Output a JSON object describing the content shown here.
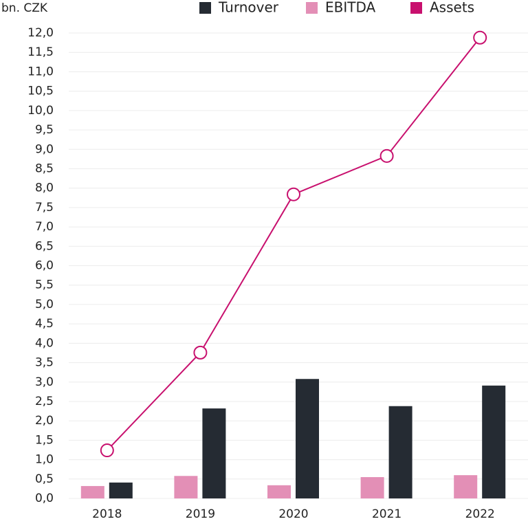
{
  "chart_data": {
    "type": "bar",
    "y_label": "bn. CZK",
    "categories": [
      "2018",
      "2019",
      "2020",
      "2021",
      "2022"
    ],
    "series": [
      {
        "name": "Turnover",
        "color": "#252b33",
        "values": [
          0.41,
          2.32,
          3.08,
          2.38,
          2.91
        ]
      },
      {
        "name": "EBITDA",
        "color": "#e38fb6",
        "values": [
          0.32,
          0.58,
          0.34,
          0.55,
          0.6
        ]
      },
      {
        "name": "Assets",
        "color": "#c8106e",
        "type": "line",
        "values": [
          1.24,
          3.76,
          7.84,
          8.83,
          11.88
        ]
      }
    ],
    "ylim": [
      0,
      12
    ],
    "yticks": [
      {
        "value": 0,
        "label": "0,0"
      },
      {
        "value": 0.5,
        "label": "0,5"
      },
      {
        "value": 1,
        "label": "1,0"
      },
      {
        "value": 1.5,
        "label": "1,5"
      },
      {
        "value": 2,
        "label": "2,0"
      },
      {
        "value": 2.5,
        "label": "2,5"
      },
      {
        "value": 3,
        "label": "3,0"
      },
      {
        "value": 3.5,
        "label": "3,5"
      },
      {
        "value": 4,
        "label": "4,0"
      },
      {
        "value": 4.5,
        "label": "4,5"
      },
      {
        "value": 5,
        "label": "5,0"
      },
      {
        "value": 5.5,
        "label": "5,5"
      },
      {
        "value": 6,
        "label": "6,0"
      },
      {
        "value": 6.5,
        "label": "6,5"
      },
      {
        "value": 7,
        "label": "7,0"
      },
      {
        "value": 7.5,
        "label": "7,5"
      },
      {
        "value": 8,
        "label": "8,0"
      },
      {
        "value": 8.5,
        "label": "8,5"
      },
      {
        "value": 9,
        "label": "9,0"
      },
      {
        "value": 9.5,
        "label": "9,5"
      },
      {
        "value": 10,
        "label": "10,0"
      },
      {
        "value": 10.5,
        "label": "10,5"
      },
      {
        "value": 11,
        "label": "11,0"
      },
      {
        "value": 11.5,
        "label": "11,5"
      },
      {
        "value": 12,
        "label": "12,0"
      }
    ],
    "grid": true
  }
}
